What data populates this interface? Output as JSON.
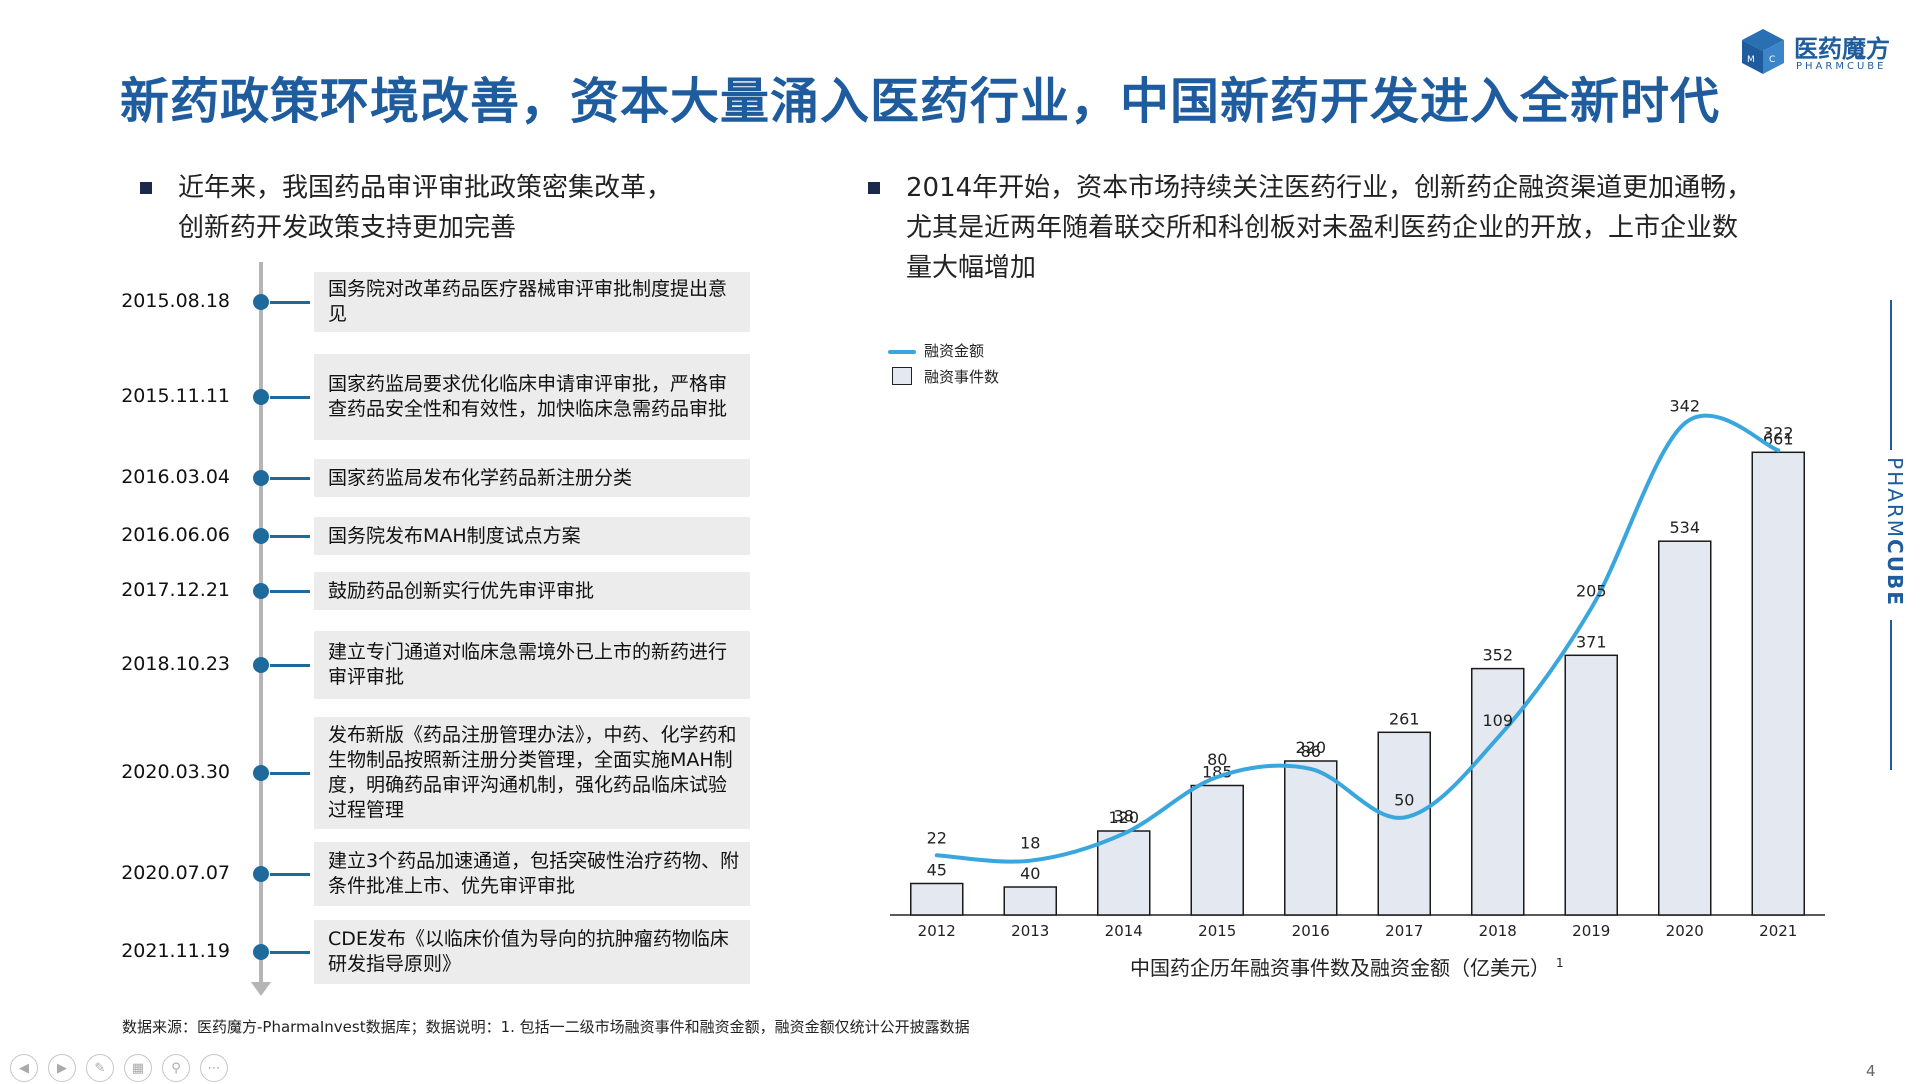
{
  "title": "新药政策环境改善，资本大量涌入医药行业，中国新药开发进入全新时代",
  "logo": {
    "cn": "医药魔方",
    "en": "PHARMCUBE",
    "cube_letters": "MC"
  },
  "left_bullet": {
    "line1": "近年来，我国药品审评审批政策密集改革，",
    "line2": "创新药开发政策支持更加完善"
  },
  "right_bullet": {
    "line1": "2014年开始，资本市场持续关注医药行业，创新药企融资渠道更加通畅，",
    "line2": "尤其是近两年随着联交所和科创板对未盈利医药企业的开放，上市企业数",
    "line3": "量大幅增加"
  },
  "timeline": [
    {
      "date": "2015.08.18",
      "text": "国务院对改革药品医疗器械审评审批制度提出意见"
    },
    {
      "date": "2015.11.11",
      "text": "国家药监局要求优化临床申请审评审批，严格审查药品安全性和有效性，加快临床急需药品审批"
    },
    {
      "date": "2016.03.04",
      "text": "国家药监局发布化学药品新注册分类"
    },
    {
      "date": "2016.06.06",
      "text": "国务院发布MAH制度试点方案"
    },
    {
      "date": "2017.12.21",
      "text": "鼓励药品创新实行优先审评审批"
    },
    {
      "date": "2018.10.23",
      "text": "建立专门通道对临床急需境外已上市的新药进行审评审批"
    },
    {
      "date": "2020.03.30",
      "text": "发布新版《药品注册管理办法》，中药、化学药和生物制品按照新注册分类管理，全面实施MAH制度，明确药品审评沟通机制，强化药品临床试验过程管理"
    },
    {
      "date": "2020.07.07",
      "text": "建立3个药品加速通道，包括突破性治疗药物、附条件批准上市、优先审评审批"
    },
    {
      "date": "2021.11.19",
      "text": "CDE发布《以临床价值为导向的抗肿瘤药物临床研发指导原则》"
    }
  ],
  "chart_data": {
    "type": "bar",
    "categories": [
      "2012",
      "2013",
      "2014",
      "2015",
      "2016",
      "2017",
      "2018",
      "2019",
      "2020",
      "2021"
    ],
    "series": [
      {
        "name": "融资事件数",
        "type": "bar",
        "values": [
          45,
          40,
          120,
          185,
          220,
          261,
          352,
          371,
          534,
          661
        ]
      },
      {
        "name": "融资金额",
        "type": "line",
        "values": [
          22,
          18,
          38,
          80,
          86,
          50,
          109,
          205,
          342,
          322
        ]
      }
    ],
    "xlabel": "中国药企历年融资事件数及融资金额（亿美元）",
    "xlabel_note": "1",
    "legend_position": "top-left",
    "colors": {
      "bar_fill": "#e4e8f0",
      "bar_stroke": "#1a1a1a",
      "line": "#3aa6de"
    }
  },
  "side_brand": {
    "part1": "PHARM",
    "part2": "CUBE"
  },
  "source": "数据来源：医药魔方-PharmaInvest数据库；数据说明：1. 包括一二级市场融资事件和融资金额，融资金额仅统计公开披露数据",
  "page_number": "4",
  "nav_icons": [
    "prev-icon",
    "next-icon",
    "pen-icon",
    "grid-icon",
    "zoom-icon",
    "more-icon"
  ],
  "colors": {
    "title": "#1f5c9e",
    "timeline": "#1f6a9c",
    "box": "#ececec"
  }
}
